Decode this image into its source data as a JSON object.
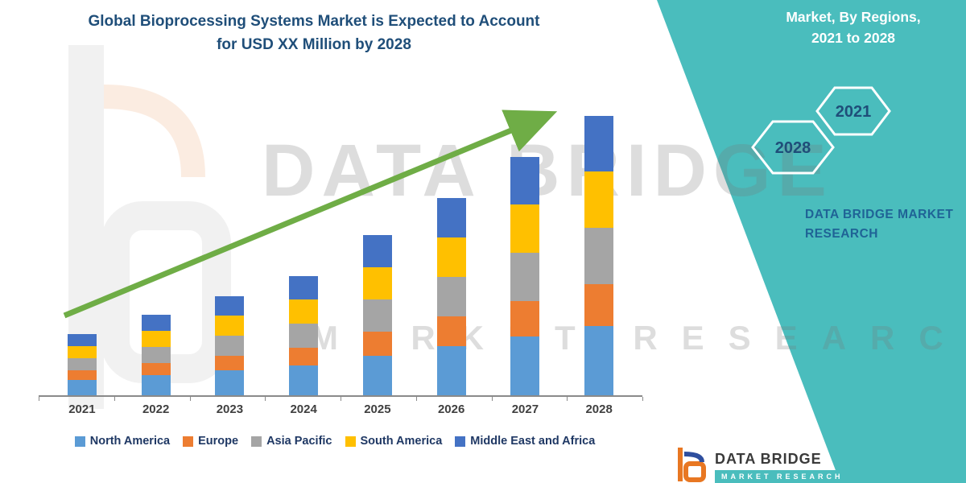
{
  "title": {
    "line1": "Global Bioprocessing Systems Market is Expected to Account",
    "line2": "for USD XX Million by 2028"
  },
  "side_panel": {
    "heading_line1": "Market, By Regions,",
    "heading_line2": "2021 to 2028",
    "hexagons": [
      {
        "year": "2028"
      },
      {
        "year": "2021"
      }
    ],
    "brand_line1": "DATA BRIDGE MARKET",
    "brand_line2": "RESEARCH"
  },
  "watermark": {
    "line1": "DATA BRIDGE",
    "line2": "MARKET RESEARCH"
  },
  "logo": {
    "text": "DATA BRIDGE",
    "sub": "MARKET RESEARCH"
  },
  "colors": {
    "panel_teal": "#4ABDBD",
    "title_navy": "#1F4E79",
    "arrow_green": "#6FAD46",
    "legend_text": "#1F3864",
    "brand_blue": "#1F6396",
    "logo_orange": "#E87722",
    "logo_blue": "#2E4E9E"
  },
  "chart_data": {
    "type": "bar",
    "stacked": true,
    "title": "Global Bioprocessing Systems Market is Expected to Account for USD XX Million by 2028",
    "categories": [
      "2021",
      "2022",
      "2023",
      "2024",
      "2025",
      "2026",
      "2027",
      "2028"
    ],
    "series": [
      {
        "name": "North America",
        "color": "#5B9BD5",
        "values": [
          20,
          26,
          32,
          38,
          51,
          63,
          76,
          89
        ]
      },
      {
        "name": "Europe",
        "color": "#ED7D31",
        "values": [
          12,
          16,
          19,
          23,
          31,
          38,
          46,
          54
        ]
      },
      {
        "name": "Asia Pacific",
        "color": "#A5A5A5",
        "values": [
          16,
          21,
          26,
          31,
          41,
          51,
          62,
          72
        ]
      },
      {
        "name": "South America",
        "color": "#FFC000",
        "values": [
          16,
          21,
          26,
          31,
          41,
          51,
          62,
          72
        ]
      },
      {
        "name": "Middle East and Africa",
        "color": "#4472C4",
        "values": [
          16,
          21,
          25,
          30,
          41,
          51,
          61,
          71
        ]
      }
    ],
    "xlabel": "",
    "ylabel": "",
    "ylim": [
      0,
      380
    ],
    "y_axis_labels_visible": false,
    "grid": false,
    "legend_position": "bottom",
    "trend_arrow": true
  }
}
